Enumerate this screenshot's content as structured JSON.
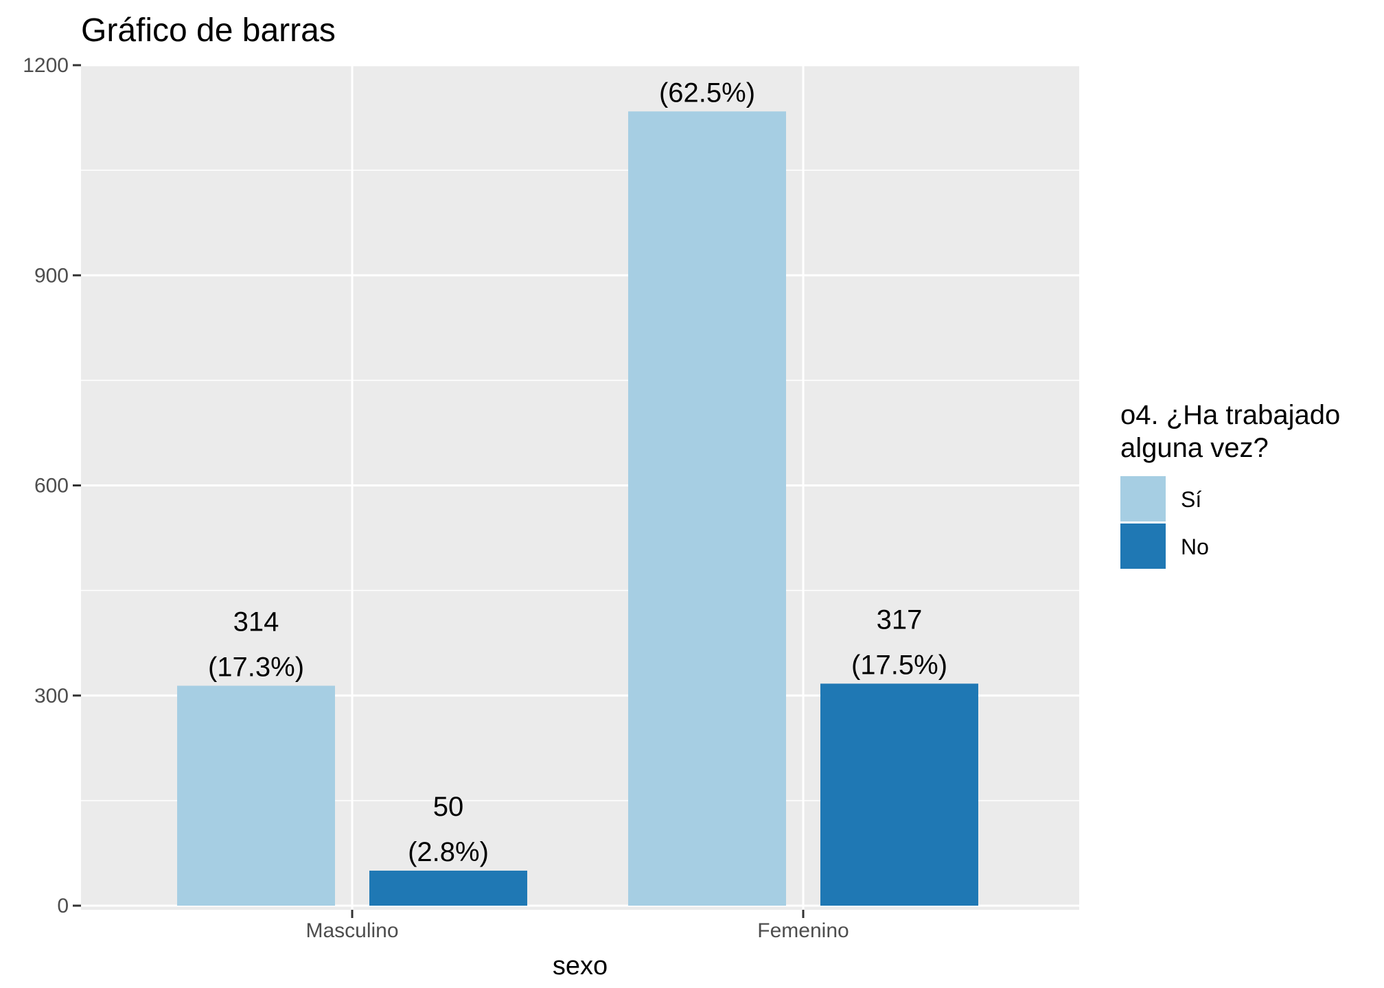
{
  "chart_data": {
    "type": "bar",
    "title": "Gráfico de barras",
    "xlabel": "sexo",
    "ylabel": "",
    "ylim": [
      0,
      1200
    ],
    "yticks": [
      0,
      300,
      600,
      900,
      1200
    ],
    "categories": [
      "Masculino",
      "Femenino"
    ],
    "series": [
      {
        "name": "Sí",
        "color": "#a6cee3",
        "values": [
          314,
          1134
        ],
        "labels": [
          "(17.3%)",
          "(62.5%)"
        ]
      },
      {
        "name": "No",
        "color": "#1f78b4",
        "values": [
          50,
          317
        ],
        "labels": [
          "(2.8%)",
          "(17.5%)"
        ]
      }
    ],
    "value_labels": [
      [
        "314",
        "1134"
      ],
      [
        "50",
        "317"
      ]
    ],
    "value_label_visible": [
      [
        true,
        false
      ],
      [
        true,
        true
      ]
    ],
    "legend": {
      "title_lines": [
        "o4. ¿Ha trabajado",
        "alguna vez?"
      ],
      "placement": "right"
    },
    "grid": true,
    "panel_color": "#ebebeb"
  }
}
